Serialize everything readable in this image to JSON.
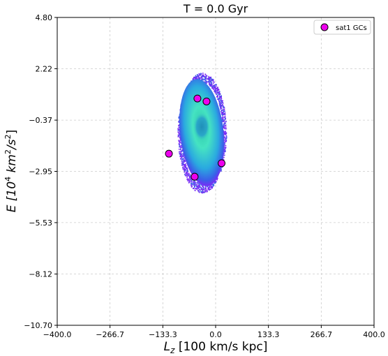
{
  "chart_data": {
    "type": "scatter",
    "title": "T = 0.0 Gyr",
    "xlabel": {
      "base": "L",
      "sub": "z",
      "rest": " [100 km/s kpc]"
    },
    "ylabel": {
      "pre": "E [10",
      "sup1": "4",
      "mid": " km",
      "sup2": "2",
      "mid2": "/s",
      "sup3": "2",
      "post": "]"
    },
    "xlim": [
      -400.0,
      400.0
    ],
    "ylim": [
      -10.7,
      4.8
    ],
    "xticks": [
      -400.0,
      -266.7,
      -133.3,
      0.0,
      133.3,
      266.7,
      400.0
    ],
    "xtick_labels": [
      "−400.0",
      "−266.7",
      "−133.3",
      "0.0",
      "133.3",
      "266.7",
      "400.0"
    ],
    "yticks": [
      4.8,
      2.22,
      -0.37,
      -2.95,
      -5.53,
      -8.12,
      -10.7
    ],
    "ytick_labels": [
      "4.80",
      "2.22",
      "−0.37",
      "−2.95",
      "−5.53",
      "−8.12",
      "−10.70"
    ],
    "grid": true,
    "legend": {
      "placement": "top-right",
      "entries": [
        "sat1 GCs"
      ]
    },
    "density_cloud": {
      "description_color_low": "#7b2cf5",
      "description_color_high": "#3fe6b0",
      "center": [
        -35,
        -1.0
      ],
      "half_widths": [
        58,
        2.85
      ],
      "hole_center": [
        -35,
        -0.7
      ],
      "hole_half_widths": [
        22,
        0.75
      ]
    },
    "series": [
      {
        "name": "sat1 GCs",
        "color": "#ee00ee",
        "x": [
          -46,
          -23,
          -118,
          -53,
          15
        ],
        "y": [
          0.72,
          0.57,
          -2.06,
          -3.22,
          -2.54
        ]
      }
    ]
  }
}
